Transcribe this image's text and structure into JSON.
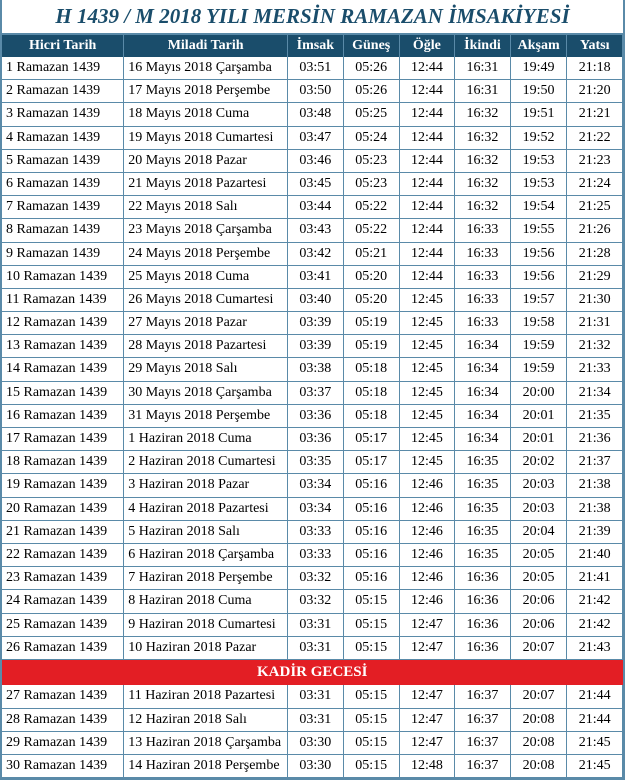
{
  "title": "H 1439 / M 2018 YILI MERSİN RAMAZAN İMSAKİYESİ",
  "columns": [
    "Hicri Tarih",
    "Miladi Tarih",
    "İmsak",
    "Güneş",
    "Öğle",
    "İkindi",
    "Akşam",
    "Yatsı"
  ],
  "kadir_label": "KADİR GECESİ",
  "rows1": [
    {
      "hicri": "1 Ramazan 1439",
      "miladi": "16 Mayıs 2018 Çarşamba",
      "imsak": "03:51",
      "gunes": "05:26",
      "ogle": "12:44",
      "ikindi": "16:31",
      "aksam": "19:49",
      "yatsi": "21:18"
    },
    {
      "hicri": "2 Ramazan 1439",
      "miladi": "17 Mayıs 2018 Perşembe",
      "imsak": "03:50",
      "gunes": "05:26",
      "ogle": "12:44",
      "ikindi": "16:31",
      "aksam": "19:50",
      "yatsi": "21:20"
    },
    {
      "hicri": "3 Ramazan 1439",
      "miladi": "18 Mayıs 2018 Cuma",
      "imsak": "03:48",
      "gunes": "05:25",
      "ogle": "12:44",
      "ikindi": "16:32",
      "aksam": "19:51",
      "yatsi": "21:21"
    },
    {
      "hicri": "4 Ramazan 1439",
      "miladi": "19 Mayıs 2018 Cumartesi",
      "imsak": "03:47",
      "gunes": "05:24",
      "ogle": "12:44",
      "ikindi": "16:32",
      "aksam": "19:52",
      "yatsi": "21:22"
    },
    {
      "hicri": "5 Ramazan 1439",
      "miladi": "20 Mayıs 2018 Pazar",
      "imsak": "03:46",
      "gunes": "05:23",
      "ogle": "12:44",
      "ikindi": "16:32",
      "aksam": "19:53",
      "yatsi": "21:23"
    },
    {
      "hicri": "6 Ramazan 1439",
      "miladi": "21 Mayıs 2018 Pazartesi",
      "imsak": "03:45",
      "gunes": "05:23",
      "ogle": "12:44",
      "ikindi": "16:32",
      "aksam": "19:53",
      "yatsi": "21:24"
    },
    {
      "hicri": "7 Ramazan 1439",
      "miladi": "22 Mayıs 2018 Salı",
      "imsak": "03:44",
      "gunes": "05:22",
      "ogle": "12:44",
      "ikindi": "16:32",
      "aksam": "19:54",
      "yatsi": "21:25"
    },
    {
      "hicri": "8 Ramazan 1439",
      "miladi": "23 Mayıs 2018 Çarşamba",
      "imsak": "03:43",
      "gunes": "05:22",
      "ogle": "12:44",
      "ikindi": "16:33",
      "aksam": "19:55",
      "yatsi": "21:26"
    },
    {
      "hicri": "9 Ramazan 1439",
      "miladi": "24 Mayıs 2018 Perşembe",
      "imsak": "03:42",
      "gunes": "05:21",
      "ogle": "12:44",
      "ikindi": "16:33",
      "aksam": "19:56",
      "yatsi": "21:28"
    },
    {
      "hicri": "10 Ramazan 1439",
      "miladi": "25 Mayıs 2018 Cuma",
      "imsak": "03:41",
      "gunes": "05:20",
      "ogle": "12:44",
      "ikindi": "16:33",
      "aksam": "19:56",
      "yatsi": "21:29"
    },
    {
      "hicri": "11 Ramazan 1439",
      "miladi": "26 Mayıs 2018 Cumartesi",
      "imsak": "03:40",
      "gunes": "05:20",
      "ogle": "12:45",
      "ikindi": "16:33",
      "aksam": "19:57",
      "yatsi": "21:30"
    },
    {
      "hicri": "12 Ramazan 1439",
      "miladi": "27 Mayıs 2018 Pazar",
      "imsak": "03:39",
      "gunes": "05:19",
      "ogle": "12:45",
      "ikindi": "16:33",
      "aksam": "19:58",
      "yatsi": "21:31"
    },
    {
      "hicri": "13 Ramazan 1439",
      "miladi": "28 Mayıs 2018 Pazartesi",
      "imsak": "03:39",
      "gunes": "05:19",
      "ogle": "12:45",
      "ikindi": "16:34",
      "aksam": "19:59",
      "yatsi": "21:32"
    },
    {
      "hicri": "14 Ramazan 1439",
      "miladi": "29 Mayıs 2018 Salı",
      "imsak": "03:38",
      "gunes": "05:18",
      "ogle": "12:45",
      "ikindi": "16:34",
      "aksam": "19:59",
      "yatsi": "21:33"
    },
    {
      "hicri": "15 Ramazan 1439",
      "miladi": "30 Mayıs 2018 Çarşamba",
      "imsak": "03:37",
      "gunes": "05:18",
      "ogle": "12:45",
      "ikindi": "16:34",
      "aksam": "20:00",
      "yatsi": "21:34"
    },
    {
      "hicri": "16 Ramazan 1439",
      "miladi": "31 Mayıs 2018 Perşembe",
      "imsak": "03:36",
      "gunes": "05:18",
      "ogle": "12:45",
      "ikindi": "16:34",
      "aksam": "20:01",
      "yatsi": "21:35"
    },
    {
      "hicri": "17 Ramazan 1439",
      "miladi": "1 Haziran 2018 Cuma",
      "imsak": "03:36",
      "gunes": "05:17",
      "ogle": "12:45",
      "ikindi": "16:34",
      "aksam": "20:01",
      "yatsi": "21:36"
    },
    {
      "hicri": "18 Ramazan 1439",
      "miladi": "2 Haziran 2018 Cumartesi",
      "imsak": "03:35",
      "gunes": "05:17",
      "ogle": "12:45",
      "ikindi": "16:35",
      "aksam": "20:02",
      "yatsi": "21:37"
    },
    {
      "hicri": "19 Ramazan 1439",
      "miladi": "3 Haziran 2018 Pazar",
      "imsak": "03:34",
      "gunes": "05:16",
      "ogle": "12:46",
      "ikindi": "16:35",
      "aksam": "20:03",
      "yatsi": "21:38"
    },
    {
      "hicri": "20 Ramazan 1439",
      "miladi": "4 Haziran 2018 Pazartesi",
      "imsak": "03:34",
      "gunes": "05:16",
      "ogle": "12:46",
      "ikindi": "16:35",
      "aksam": "20:03",
      "yatsi": "21:38"
    },
    {
      "hicri": "21 Ramazan 1439",
      "miladi": "5 Haziran 2018 Salı",
      "imsak": "03:33",
      "gunes": "05:16",
      "ogle": "12:46",
      "ikindi": "16:35",
      "aksam": "20:04",
      "yatsi": "21:39"
    },
    {
      "hicri": "22 Ramazan 1439",
      "miladi": "6 Haziran 2018 Çarşamba",
      "imsak": "03:33",
      "gunes": "05:16",
      "ogle": "12:46",
      "ikindi": "16:35",
      "aksam": "20:05",
      "yatsi": "21:40"
    },
    {
      "hicri": "23 Ramazan 1439",
      "miladi": "7 Haziran 2018 Perşembe",
      "imsak": "03:32",
      "gunes": "05:16",
      "ogle": "12:46",
      "ikindi": "16:36",
      "aksam": "20:05",
      "yatsi": "21:41"
    },
    {
      "hicri": "24 Ramazan 1439",
      "miladi": "8 Haziran 2018 Cuma",
      "imsak": "03:32",
      "gunes": "05:15",
      "ogle": "12:46",
      "ikindi": "16:36",
      "aksam": "20:06",
      "yatsi": "21:42"
    },
    {
      "hicri": "25 Ramazan 1439",
      "miladi": "9 Haziran 2018 Cumartesi",
      "imsak": "03:31",
      "gunes": "05:15",
      "ogle": "12:47",
      "ikindi": "16:36",
      "aksam": "20:06",
      "yatsi": "21:42"
    },
    {
      "hicri": "26 Ramazan 1439",
      "miladi": "10 Haziran 2018 Pazar",
      "imsak": "03:31",
      "gunes": "05:15",
      "ogle": "12:47",
      "ikindi": "16:36",
      "aksam": "20:07",
      "yatsi": "21:43"
    }
  ],
  "rows2": [
    {
      "hicri": "27 Ramazan 1439",
      "miladi": "11 Haziran 2018 Pazartesi",
      "imsak": "03:31",
      "gunes": "05:15",
      "ogle": "12:47",
      "ikindi": "16:37",
      "aksam": "20:07",
      "yatsi": "21:44"
    },
    {
      "hicri": "28 Ramazan 1439",
      "miladi": "12 Haziran 2018 Salı",
      "imsak": "03:31",
      "gunes": "05:15",
      "ogle": "12:47",
      "ikindi": "16:37",
      "aksam": "20:08",
      "yatsi": "21:44"
    },
    {
      "hicri": "29 Ramazan 1439",
      "miladi": "13 Haziran 2018 Çarşamba",
      "imsak": "03:30",
      "gunes": "05:15",
      "ogle": "12:47",
      "ikindi": "16:37",
      "aksam": "20:08",
      "yatsi": "21:45"
    },
    {
      "hicri": "30 Ramazan 1439",
      "miladi": "14 Haziran 2018 Perşembe",
      "imsak": "03:30",
      "gunes": "05:15",
      "ogle": "12:48",
      "ikindi": "16:37",
      "aksam": "20:08",
      "yatsi": "21:45"
    }
  ],
  "colors": {
    "header_bg": "#1a4d6b",
    "header_text": "#ffffff",
    "border": "#5a8aa8",
    "kadir_bg": "#e31e24",
    "kadir_text": "#ffffff",
    "title_text": "#1a4d6b",
    "cell_text": "#000000"
  }
}
